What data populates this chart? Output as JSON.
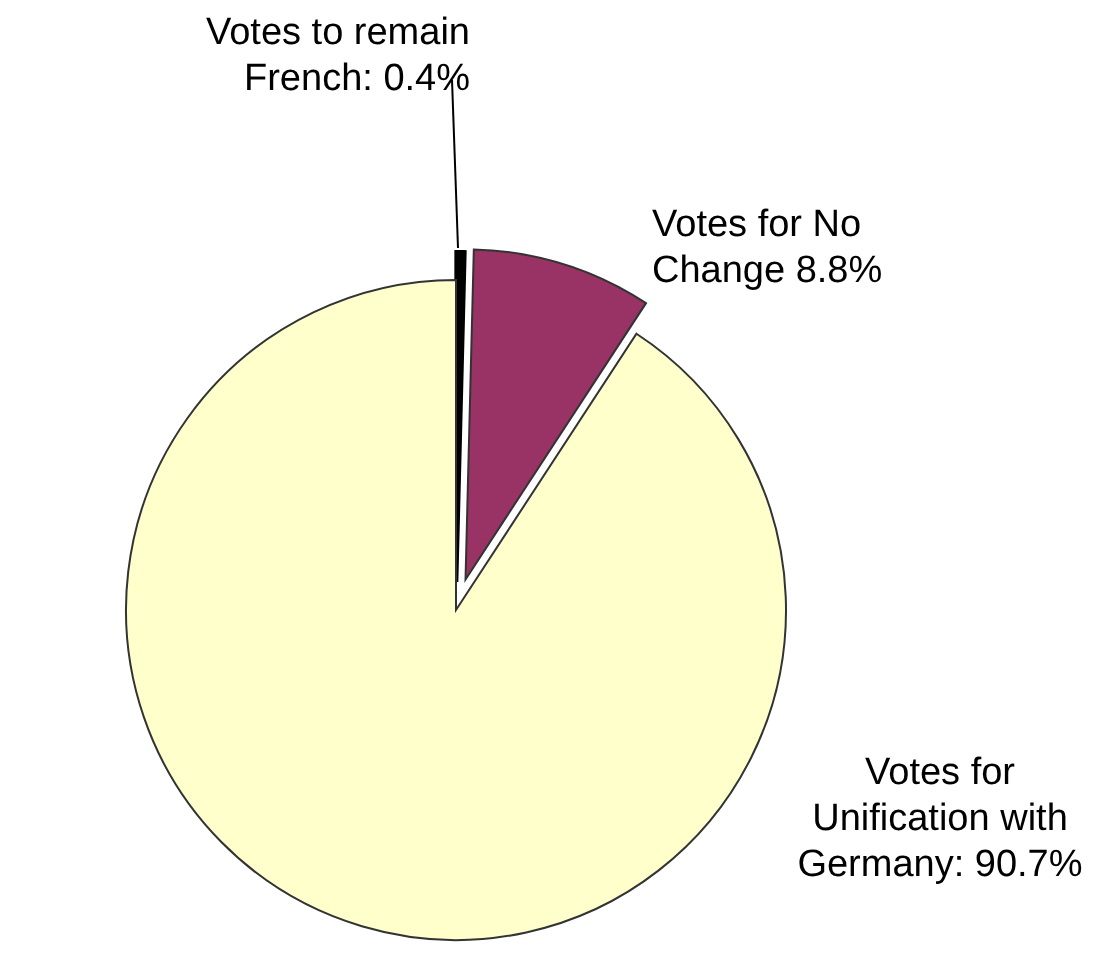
{
  "chart_data": {
    "type": "pie",
    "categories": [
      "Votes to remain\nFrench: 0.4%",
      "Votes for No\nChange 8.8%",
      "Votes for\nUnification with\nGermany: 90.7%"
    ],
    "values": [
      0.4,
      8.8,
      90.7
    ],
    "colors": [
      "#000000",
      "#993366",
      "#ffffcc"
    ]
  }
}
